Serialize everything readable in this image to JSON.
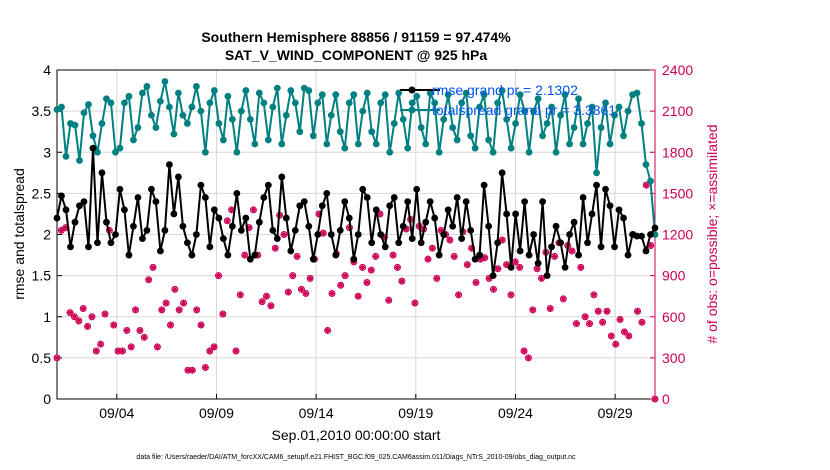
{
  "chart_data": {
    "type": "line",
    "title": "Southern Hemisphere 88856 / 91159 = 97.474%",
    "subtitle": "SAT_V_WIND_COMPONENT @ 925 hPa",
    "xlabel": "Sep.01,2010 00:00:00 start",
    "ylabel": "rmse and totalspread",
    "y2label": "# of obs: o=possible; ×=assimilated",
    "footnote": "data file: /Users/raeder/DAI/ATM_forcXX/CAM6_setup/f.e21.FHIST_BGC.f09_025.CAM6assim.011/Diags_NTrS_2010-09/obs_diag_output.nc",
    "x_tick_labels": [
      "09/04",
      "09/09",
      "09/14",
      "09/19",
      "09/24",
      "09/29"
    ],
    "x_tick_days": [
      4,
      9,
      14,
      19,
      24,
      29
    ],
    "xlim_days": [
      1,
      31
    ],
    "ylim": [
      0,
      4
    ],
    "y_ticks": [
      "0",
      "0.5",
      "1",
      "1.5",
      "2",
      "2.5",
      "3",
      "3.5",
      "4"
    ],
    "y2lim": [
      0,
      2400
    ],
    "y2_ticks": [
      "0",
      "300",
      "600",
      "900",
      "1200",
      "1500",
      "1800",
      "2100",
      "2400"
    ],
    "grid": true,
    "legend_position": "top-right",
    "colors": {
      "rmse": "#000000",
      "spread": "#008080",
      "obs": "#cc0055",
      "legend_text": "#0055ee"
    },
    "series": [
      {
        "name": "rmse grand pr = 2.1302",
        "axis": "left",
        "values": [
          2.2,
          2.47,
          2.3,
          1.85,
          2.15,
          2.35,
          2.4,
          1.85,
          3.05,
          1.9,
          2.75,
          2.15,
          1.9,
          2.0,
          2.55,
          2.3,
          1.75,
          2.1,
          2.45,
          1.95,
          2.05,
          2.55,
          2.4,
          1.8,
          2.05,
          2.85,
          2.25,
          2.7,
          2.1,
          1.9,
          1.75,
          2.0,
          2.6,
          2.45,
          1.85,
          2.3,
          2.2,
          1.95,
          1.75,
          2.1,
          2.5,
          2.05,
          2.2,
          1.7,
          1.75,
          2.15,
          2.45,
          2.6,
          2.05,
          1.95,
          2.7,
          2.2,
          1.8,
          2.05,
          2.35,
          2.4,
          2.1,
          1.7,
          2.0,
          2.35,
          2.5,
          2.0,
          1.75,
          2.05,
          2.4,
          2.2,
          1.7,
          2.0,
          2.55,
          2.45,
          1.9,
          2.3,
          2.0,
          1.85,
          2.35,
          2.45,
          1.9,
          2.1,
          2.4,
          1.95,
          2.55,
          1.9,
          2.15,
          2.4,
          2.2,
          1.75,
          2.0,
          2.3,
          2.1,
          2.45,
          1.95,
          2.4,
          2.05,
          1.7,
          1.75,
          2.6,
          2.1,
          1.5,
          1.9,
          2.75,
          2.25,
          1.6,
          2.25,
          1.8,
          2.4,
          1.75,
          2.0,
          1.65,
          2.4,
          1.5,
          1.85,
          2.1,
          1.9,
          1.6,
          2.0,
          2.15,
          1.75,
          2.45,
          1.9,
          2.25,
          2.6,
          1.85,
          2.55,
          2.35,
          1.85,
          2.3,
          2.2,
          1.75,
          2.0,
          1.98,
          1.98,
          1.8,
          2.0,
          2.08
        ]
      },
      {
        "name": "totalspread grand pr = 3.3861",
        "axis": "left",
        "values": [
          3.52,
          3.55,
          2.95,
          3.35,
          3.33,
          2.9,
          3.48,
          3.58,
          3.2,
          3.0,
          3.35,
          3.65,
          3.6,
          3.0,
          3.05,
          3.6,
          3.68,
          3.15,
          3.3,
          3.72,
          3.8,
          3.45,
          3.3,
          3.62,
          3.86,
          3.55,
          3.22,
          3.72,
          3.45,
          3.35,
          3.55,
          3.8,
          3.5,
          3.0,
          3.6,
          3.75,
          3.35,
          3.15,
          3.68,
          3.4,
          3.0,
          3.5,
          3.75,
          3.4,
          3.1,
          3.72,
          3.6,
          3.15,
          3.55,
          3.78,
          3.1,
          3.45,
          3.75,
          3.6,
          3.25,
          3.78,
          3.75,
          3.2,
          3.6,
          3.7,
          3.1,
          3.45,
          3.7,
          3.25,
          3.05,
          3.6,
          3.7,
          3.1,
          3.5,
          3.72,
          3.25,
          3.1,
          3.6,
          3.7,
          3.0,
          3.35,
          3.72,
          3.4,
          3.05,
          3.6,
          3.68,
          3.3,
          3.1,
          3.72,
          3.6,
          3.0,
          3.4,
          3.7,
          3.3,
          3.15,
          3.6,
          3.72,
          3.2,
          3.05,
          3.55,
          3.7,
          3.15,
          3.0,
          3.6,
          3.75,
          3.4,
          3.05,
          3.35,
          3.7,
          3.5,
          3.0,
          3.5,
          3.65,
          3.2,
          3.35,
          3.55,
          3.0,
          3.45,
          3.7,
          3.1,
          3.3,
          3.65,
          3.1,
          3.35,
          3.55,
          2.75,
          3.3,
          3.6,
          3.1,
          3.45,
          3.55,
          3.2,
          3.5,
          3.7,
          3.72,
          3.35,
          2.85,
          2.65,
          2.0
        ]
      }
    ],
    "obs_possible": [
      300,
      1230,
      1250,
      630,
      600,
      570,
      660,
      530,
      600,
      350,
      400,
      620,
      1230,
      540,
      350,
      350,
      500,
      380,
      650,
      500,
      450,
      870,
      960,
      380,
      650,
      700,
      540,
      800,
      650,
      700,
      210,
      210,
      650,
      540,
      230,
      350,
      380,
      900,
      620,
      1300,
      1380,
      350,
      760,
      1050,
      1250,
      1380,
      1050,
      710,
      750,
      680,
      1100,
      1340,
      1200,
      780,
      900,
      1040,
      800,
      770,
      880,
      1020,
      1350,
      1210,
      500,
      770,
      1060,
      830,
      900,
      1250,
      1000,
      750,
      960,
      850,
      940,
      1040,
      1350,
      1180,
      720,
      1050,
      960,
      860,
      1240,
      1310,
      700,
      1260,
      1240,
      1020,
      1100,
      880,
      1230,
      1200,
      1160,
      1040,
      760,
      1220,
      980,
      1100,
      850,
      1020,
      1030,
      880,
      800,
      950,
      1160,
      980,
      760,
      1000,
      960,
      350,
      300,
      650,
      950,
      880,
      1070,
      660,
      1040,
      1140,
      730,
      1120,
      1080,
      550,
      960,
      600,
      550,
      760,
      640,
      560,
      640,
      460,
      400,
      580,
      490,
      460,
      1200,
      640,
      560,
      1560,
      1120,
      0
    ]
  }
}
